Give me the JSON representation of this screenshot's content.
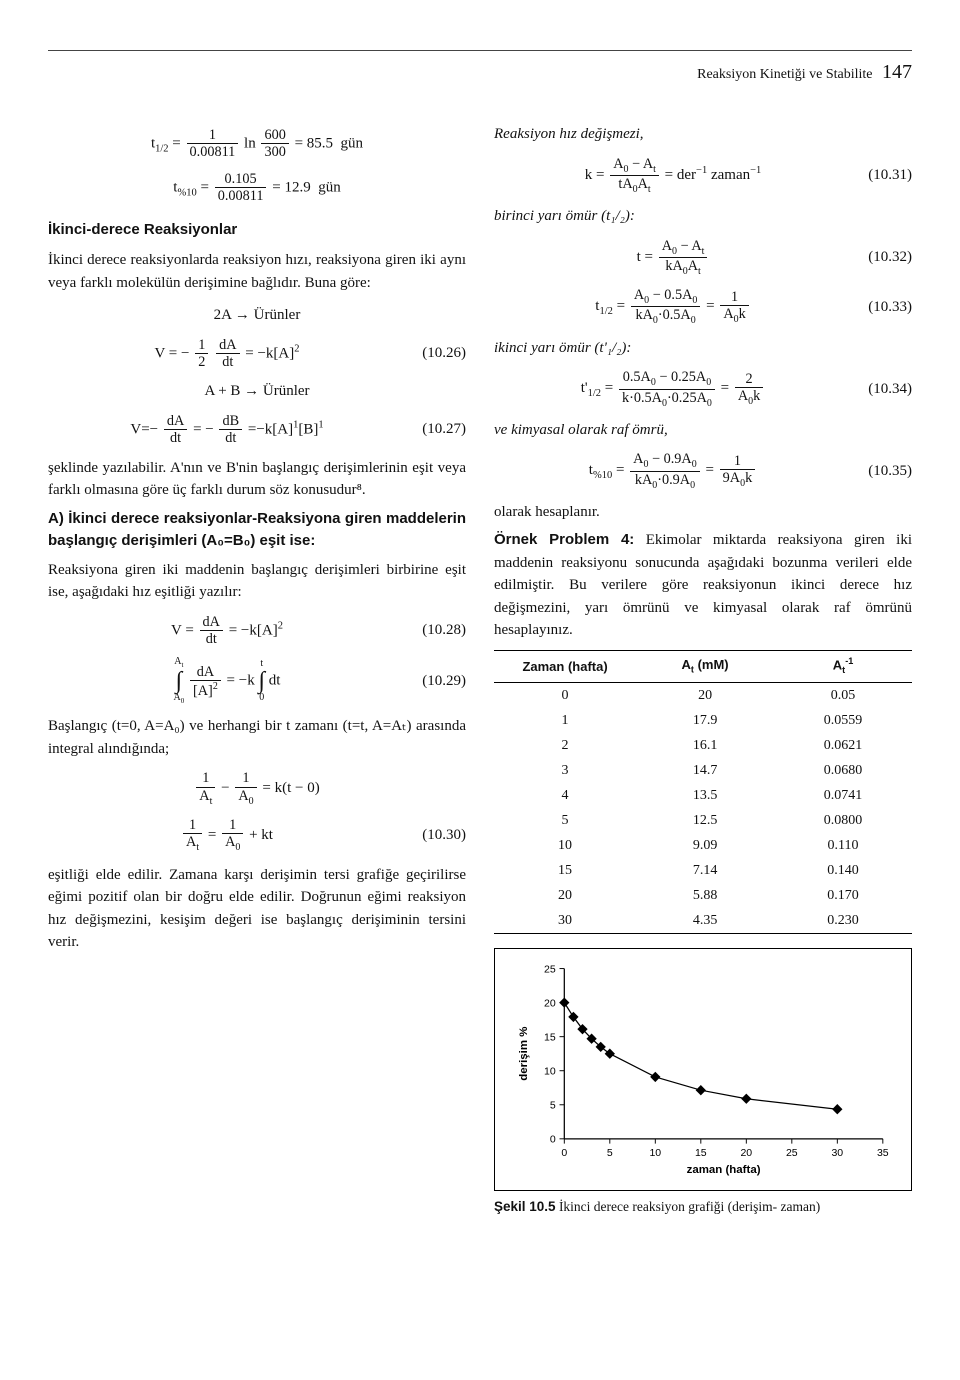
{
  "page": {
    "running_head": "Reaksiyon Kinetiği ve Stabilite",
    "number": "147"
  },
  "left": {
    "eq_t12": "t₁/₂ = (1 / 0.00811) ln(600/300) = 85.5  gün",
    "eq_t10": "t₍%10₎ = 0.105 / 0.00811 = 12.9  gün",
    "h_second": "İkinci-derece Reaksiyonlar",
    "p_second": "İkinci derece reaksiyonlarda reaksiyon hızı, reaksiyona giren iki aynı veya farklı molekülün derişimine bağlıdır. Buna göre:",
    "rx_2a": "2A → Ürünler",
    "eq_1026": "V = − (1/2)(dA/dt) = −k[A]²",
    "eqn_1026": "(10.26)",
    "rx_ab": "A + B → Ürünler",
    "eq_1027": "V = − dA/dt = − dB/dt = −k[A]¹[B]¹",
    "eqn_1027": "(10.27)",
    "p_shape": "şeklinde yazılabilir. A'nın ve B'nin başlangıç derişimlerinin eşit veya farklı olmasına göre üç farklı durum söz konusudur⁸.",
    "h_a": "A) İkinci derece reaksiyonlar-Reaksiyona giren maddelerin başlangıç derişimleri (A₀=B₀) eşit ise:",
    "p_a": "Reaksiyona giren iki maddenin başlangıç derişimleri birbirine eşit ise, aşağıdaki hız eşitliği yazılır:",
    "eq_1028": "V = dA/dt = −k[A]²",
    "eqn_1028": "(10.28)",
    "eq_1029": "∫ (dA/[A]²) = −k ∫ dt",
    "eqn_1029": "(10.29)",
    "p_int": "Başlangıç (t=0, A=A₀) ve herhangi bir t zamanı (t=t, A=Aₜ) arasında integral alındığında;",
    "eq_kt": "1/Aₜ − 1/A₀ = k(t − 0)",
    "eq_1030": "1/Aₜ = 1/A₀ + kt",
    "eqn_1030": "(10.30)",
    "p_tail": "eşitliği elde edilir. Zamana karşı derişimin tersi grafiğe geçirilirse eğimi pozitif olan bir doğru elde edilir. Doğrunun eğimi reaksiyon hız değişmezini, kesişim değeri ise başlangıç derişiminin tersini verir."
  },
  "right": {
    "p_rate_const": "Reaksiyon hız değişmezi,",
    "eq_1031": "k = (A₀ − Aₜ)/(tA₀Aₜ) = der⁻¹ zaman⁻¹",
    "eqn_1031": "(10.31)",
    "p_first_half": "birinci yarı ömür (t₁/₂):",
    "eq_1032": "t = (A₀ − Aₜ)/(kA₀Aₜ)",
    "eqn_1032": "(10.32)",
    "eq_1033": "t₁/₂ = (A₀ − 0.5A₀)/(kA₀·0.5A₀) = 1/(A₀k)",
    "eqn_1033": "(10.33)",
    "p_second_half": "ikinci yarı ömür (t'₁/₂):",
    "eq_1034": "t'₁/₂ = (0.5A₀ − 0.25A₀)/(k·0.5A₀·0.25A₀) = 2/(A₀k)",
    "eqn_1034": "(10.34)",
    "p_shelf": "ve kimyasal olarak raf ömrü,",
    "eq_1035": "t₍%10₎ = (A₀ − 0.9A₀)/(kA₀·0.9A₀) = 1/(9A₀k)",
    "eqn_1035": "(10.35)",
    "p_calc": "olarak hesaplanır.",
    "problem_title": "Örnek Problem 4:",
    "problem_text": " Ekimolar miktarda reaksiyona giren iki maddenin reaksiyonu sonucunda aşağıdaki bozunma verileri elde edilmiştir. Bu verilere göre reaksiyonun ikinci derece hız değişmezini, yarı ömrünü ve kimyasal olarak raf ömrünü hesaplayınız.",
    "table": {
      "headers": [
        "Zaman (hafta)",
        "Aₜ (mM)",
        "Aₜ⁻¹"
      ],
      "rows": [
        [
          "0",
          "20",
          "0.05"
        ],
        [
          "1",
          "17.9",
          "0.0559"
        ],
        [
          "2",
          "16.1",
          "0.0621"
        ],
        [
          "3",
          "14.7",
          "0.0680"
        ],
        [
          "4",
          "13.5",
          "0.0741"
        ],
        [
          "5",
          "12.5",
          "0.0800"
        ],
        [
          "10",
          "9.09",
          "0.110"
        ],
        [
          "15",
          "7.14",
          "0.140"
        ],
        [
          "20",
          "5.88",
          "0.170"
        ],
        [
          "30",
          "4.35",
          "0.230"
        ]
      ]
    },
    "chart": {
      "type": "scatter-line",
      "xlabel": "zaman (hafta)",
      "ylabel": "derişim %",
      "xlim": [
        0,
        35
      ],
      "xtick_step": 5,
      "ylim": [
        0,
        25
      ],
      "ytick_step": 5,
      "ytick_min_label": 0,
      "marker": "diamond",
      "marker_size": 7,
      "marker_color": "#000000",
      "line_color": "#000000",
      "line_width": 1.3,
      "background_color": "#ffffff",
      "grid": false,
      "axis_color": "#000000",
      "tick_fontsize": 11,
      "label_fontsize": 12,
      "data": {
        "x": [
          0,
          1,
          2,
          3,
          4,
          5,
          10,
          15,
          20,
          30
        ],
        "y": [
          20,
          17.9,
          16.1,
          14.7,
          13.5,
          12.5,
          9.09,
          7.14,
          5.88,
          4.35
        ]
      }
    },
    "caption_bold": "Şekil 10.5",
    "caption_rest": " İkinci derece reaksiyon grafiği (derişim- zaman)"
  }
}
